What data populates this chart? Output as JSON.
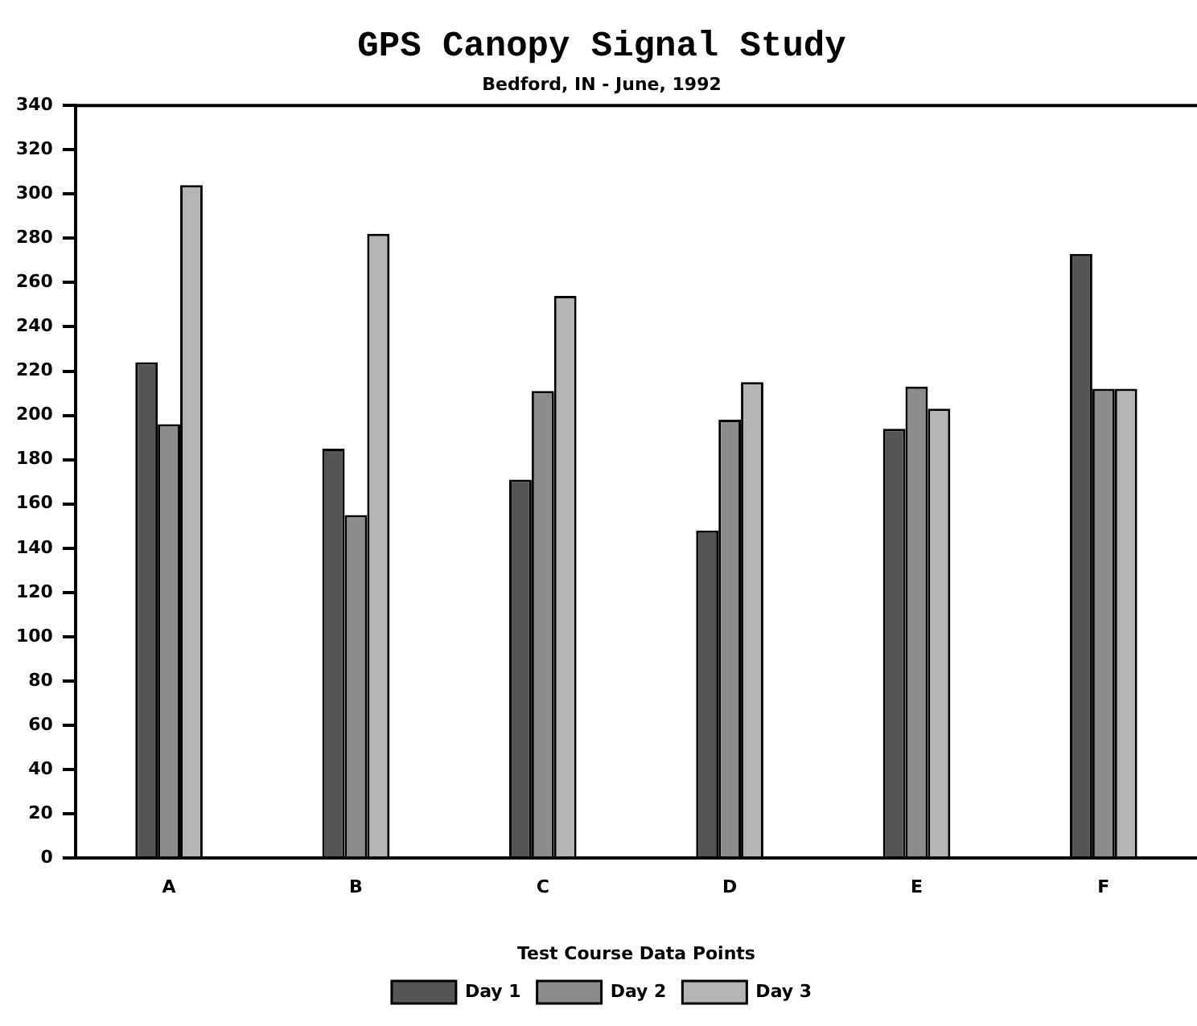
{
  "chart_data": {
    "type": "bar",
    "title": "GPS Canopy Signal Study",
    "subtitle": "Bedford, IN - June, 1992",
    "xlabel": "Test Course Data Points",
    "categories": [
      "A",
      "B",
      "C",
      "D",
      "E",
      "F"
    ],
    "series": [
      {
        "name": "Day 1",
        "color": "#555555",
        "values": [
          224,
          185,
          171,
          148,
          194,
          273
        ]
      },
      {
        "name": "Day 2",
        "color": "#8c8c8c",
        "values": [
          196,
          155,
          211,
          198,
          213,
          212
        ]
      },
      {
        "name": "Day 3",
        "color": "#b4b4b4",
        "values": [
          304,
          282,
          254,
          215,
          203,
          212
        ]
      }
    ],
    "ylim": [
      0,
      340
    ],
    "yticks": [
      0,
      20,
      40,
      60,
      80,
      100,
      120,
      140,
      160,
      180,
      200,
      220,
      240,
      260,
      280,
      300,
      320,
      340
    ],
    "grid": false,
    "legend": "bottom"
  }
}
